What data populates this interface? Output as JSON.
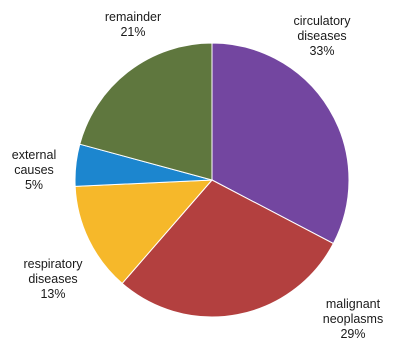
{
  "chart_data": {
    "type": "pie",
    "start": "12 o'clock",
    "direction": "clockwise",
    "slices": [
      {
        "label_lines": [
          "circulatory",
          "diseases"
        ],
        "pct_text": "33%",
        "value": 33,
        "color": "#7346a0"
      },
      {
        "label_lines": [
          "malignant",
          "neoplasms"
        ],
        "pct_text": "29%",
        "value": 29,
        "color": "#b3403f"
      },
      {
        "label_lines": [
          "respiratory",
          "diseases"
        ],
        "pct_text": "13%",
        "value": 13,
        "color": "#f6b82a"
      },
      {
        "label_lines": [
          "external",
          "causes"
        ],
        "pct_text": "5%",
        "value": 5,
        "color": "#1c86cf"
      },
      {
        "label_lines": [
          "remainder"
        ],
        "pct_text": "21%",
        "value": 21,
        "color": "#5f773e"
      }
    ]
  }
}
